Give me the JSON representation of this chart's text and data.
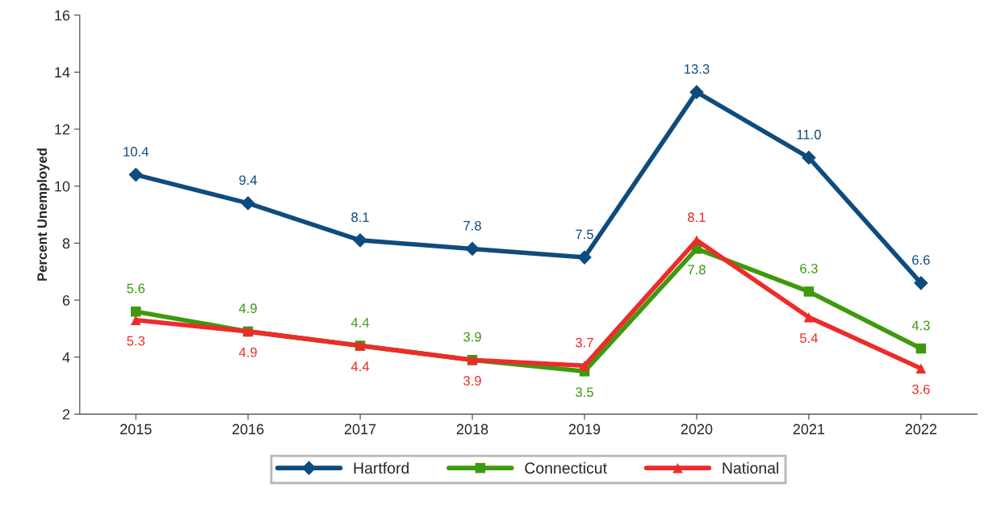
{
  "chart_data": {
    "type": "line",
    "ylabel": "Percent Unemployed",
    "categories": [
      "2015",
      "2016",
      "2017",
      "2018",
      "2019",
      "2020",
      "2021",
      "2022"
    ],
    "series": [
      {
        "name": "Hartford",
        "color": "#0e4c7f",
        "marker": "diamond",
        "values": [
          10.4,
          9.4,
          8.1,
          7.8,
          7.5,
          13.3,
          11.0,
          6.6
        ],
        "value_labels": [
          "10.4",
          "9.4",
          "8.1",
          "7.8",
          "7.5",
          "13.3",
          "11.0",
          "6.6"
        ]
      },
      {
        "name": "Connecticut",
        "color": "#3d9a0c",
        "marker": "square",
        "values": [
          5.6,
          4.9,
          4.4,
          3.9,
          3.5,
          7.8,
          6.3,
          4.3
        ],
        "value_labels": [
          "5.6",
          "4.9",
          "4.4",
          "3.9",
          "3.5",
          "7.8",
          "6.3",
          "4.3"
        ]
      },
      {
        "name": "National",
        "color": "#ee2b2b",
        "marker": "triangle",
        "values": [
          5.3,
          4.9,
          4.4,
          3.9,
          3.7,
          8.1,
          5.4,
          3.6
        ],
        "value_labels": [
          "5.3",
          "4.9",
          "4.4",
          "3.9",
          "3.7",
          "8.1",
          "5.4",
          "3.6"
        ]
      }
    ],
    "ylim": [
      2,
      16
    ],
    "yticks": [
      2,
      4,
      6,
      8,
      10,
      12,
      14,
      16
    ],
    "grid": false,
    "legend": "bottom",
    "line_style": "solid"
  }
}
